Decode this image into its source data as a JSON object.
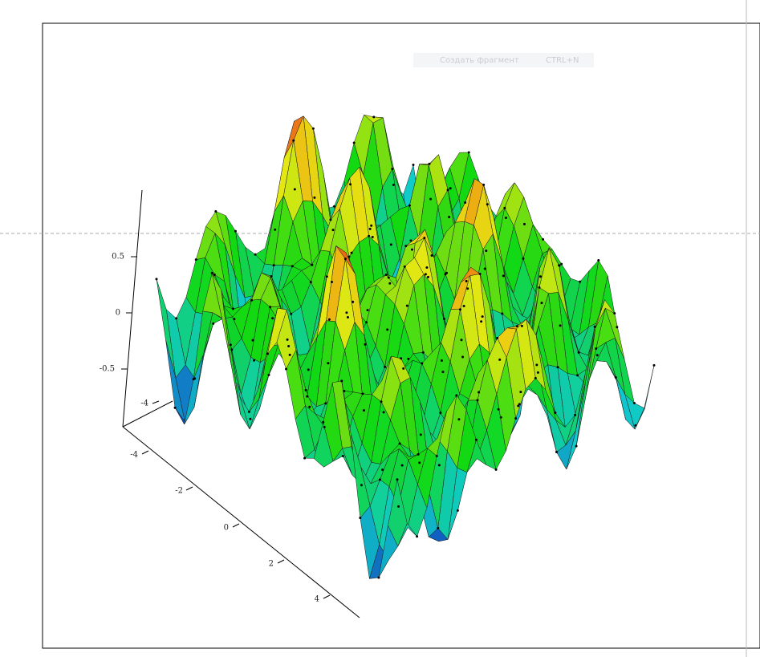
{
  "plot": {
    "z_axis_labels": [
      "0.5",
      "0",
      "-0.5"
    ],
    "y_axis_labels": [
      "-4"
    ],
    "x_axis_labels": [
      "-4",
      "-2",
      "0",
      "2",
      "4"
    ]
  },
  "tooltip": {
    "command": "Создать фрагмент",
    "shortcut": "CTRL+N"
  }
}
